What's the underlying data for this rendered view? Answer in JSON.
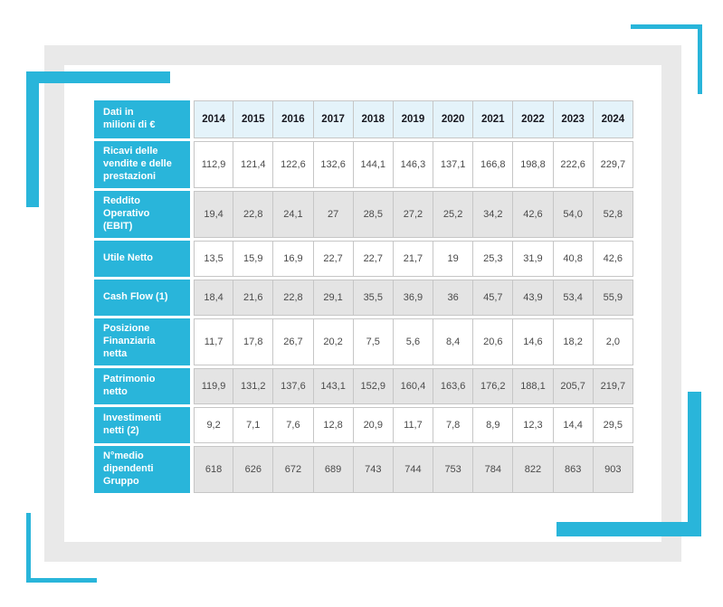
{
  "colors": {
    "accent": "#29b5da",
    "year_header_bg": "#e4f3fa",
    "row_alt_bg": "#e4e4e4",
    "cell_border": "#c6c6c6",
    "frame_border": "#e9e9e9",
    "data_text": "#4a4a4a",
    "year_text": "#181820"
  },
  "table": {
    "corner_label": "Dati in\nmilioni di €",
    "years": [
      "2014",
      "2015",
      "2016",
      "2017",
      "2018",
      "2019",
      "2020",
      "2021",
      "2022",
      "2023",
      "2024"
    ],
    "rows": [
      {
        "label": "Ricavi delle\nvendite e delle\nprestazioni",
        "shaded": false,
        "values": [
          "112,9",
          "121,4",
          "122,6",
          "132,6",
          "144,1",
          "146,3",
          "137,1",
          "166,8",
          "198,8",
          "222,6",
          "229,7"
        ]
      },
      {
        "label": "Reddito\nOperativo\n(EBIT)",
        "shaded": true,
        "values": [
          "19,4",
          "22,8",
          "24,1",
          "27",
          "28,5",
          "27,2",
          "25,2",
          "34,2",
          "42,6",
          "54,0",
          "52,8"
        ]
      },
      {
        "label": "Utile Netto",
        "shaded": false,
        "values": [
          "13,5",
          "15,9",
          "16,9",
          "22,7",
          "22,7",
          "21,7",
          "19",
          "25,3",
          "31,9",
          "40,8",
          "42,6"
        ]
      },
      {
        "label": "Cash Flow (1)",
        "shaded": true,
        "values": [
          "18,4",
          "21,6",
          "22,8",
          "29,1",
          "35,5",
          "36,9",
          "36",
          "45,7",
          "43,9",
          "53,4",
          "55,9"
        ]
      },
      {
        "label": "Posizione\nFinanziaria\nnetta",
        "shaded": false,
        "values": [
          "11,7",
          "17,8",
          "26,7",
          "20,2",
          "7,5",
          "5,6",
          "8,4",
          "20,6",
          "14,6",
          "18,2",
          "2,0"
        ]
      },
      {
        "label": "Patrimonio\nnetto",
        "shaded": true,
        "values": [
          "119,9",
          "131,2",
          "137,6",
          "143,1",
          "152,9",
          "160,4",
          "163,6",
          "176,2",
          "188,1",
          "205,7",
          "219,7"
        ]
      },
      {
        "label": "Investimenti\nnetti (2)",
        "shaded": false,
        "values": [
          "9,2",
          "7,1",
          "7,6",
          "12,8",
          "20,9",
          "11,7",
          "7,8",
          "8,9",
          "12,3",
          "14,4",
          "29,5"
        ]
      },
      {
        "label": "N°medio\ndipendenti\nGruppo",
        "shaded": true,
        "values": [
          "618",
          "626",
          "672",
          "689",
          "743",
          "744",
          "753",
          "784",
          "822",
          "863",
          "903"
        ]
      }
    ]
  },
  "chart_data": {
    "type": "table",
    "title": "Dati in milioni di €",
    "categories": [
      2014,
      2015,
      2016,
      2017,
      2018,
      2019,
      2020,
      2021,
      2022,
      2023,
      2024
    ],
    "series": [
      {
        "name": "Ricavi delle vendite e delle prestazioni",
        "values": [
          112.9,
          121.4,
          122.6,
          132.6,
          144.1,
          146.3,
          137.1,
          166.8,
          198.8,
          222.6,
          229.7
        ]
      },
      {
        "name": "Reddito Operativo (EBIT)",
        "values": [
          19.4,
          22.8,
          24.1,
          27,
          28.5,
          27.2,
          25.2,
          34.2,
          42.6,
          54.0,
          52.8
        ]
      },
      {
        "name": "Utile Netto",
        "values": [
          13.5,
          15.9,
          16.9,
          22.7,
          22.7,
          21.7,
          19,
          25.3,
          31.9,
          40.8,
          42.6
        ]
      },
      {
        "name": "Cash Flow (1)",
        "values": [
          18.4,
          21.6,
          22.8,
          29.1,
          35.5,
          36.9,
          36,
          45.7,
          43.9,
          53.4,
          55.9
        ]
      },
      {
        "name": "Posizione Finanziaria netta",
        "values": [
          11.7,
          17.8,
          26.7,
          20.2,
          7.5,
          5.6,
          8.4,
          20.6,
          14.6,
          18.2,
          2.0
        ]
      },
      {
        "name": "Patrimonio netto",
        "values": [
          119.9,
          131.2,
          137.6,
          143.1,
          152.9,
          160.4,
          163.6,
          176.2,
          188.1,
          205.7,
          219.7
        ]
      },
      {
        "name": "Investimenti netti (2)",
        "values": [
          9.2,
          7.1,
          7.6,
          12.8,
          20.9,
          11.7,
          7.8,
          8.9,
          12.3,
          14.4,
          29.5
        ]
      },
      {
        "name": "N°medio dipendenti Gruppo",
        "values": [
          618,
          626,
          672,
          689,
          743,
          744,
          753,
          784,
          822,
          863,
          903
        ]
      }
    ]
  }
}
